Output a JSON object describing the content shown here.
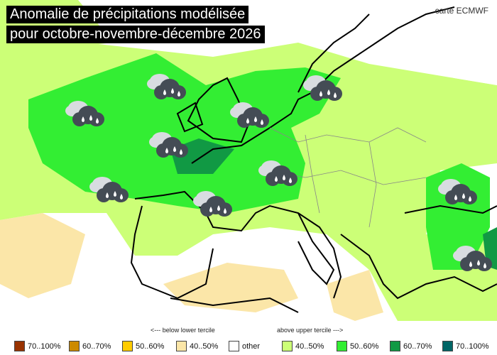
{
  "title": [
    "Anomalie de précipitations modélisée",
    "pour octobre-novembre-décembre 2026"
  ],
  "source": "carte ECMWF",
  "legend": {
    "below_label": "<--- below lower tercile",
    "above_label": "above upper tercile --->",
    "items": [
      {
        "label": "70..100%",
        "color": "#993300"
      },
      {
        "label": "60..70%",
        "color": "#cc8a00"
      },
      {
        "label": "50..60%",
        "color": "#ffcc00"
      },
      {
        "label": "40..50%",
        "color": "#fbe6a8"
      },
      {
        "label": "other",
        "color": "#ffffff"
      },
      {
        "label": "40..50%",
        "color": "#ccff77"
      },
      {
        "label": "50..60%",
        "color": "#33ee33"
      },
      {
        "label": "60..70%",
        "color": "#119944"
      },
      {
        "label": "70..100%",
        "color": "#006666"
      }
    ]
  }
}
